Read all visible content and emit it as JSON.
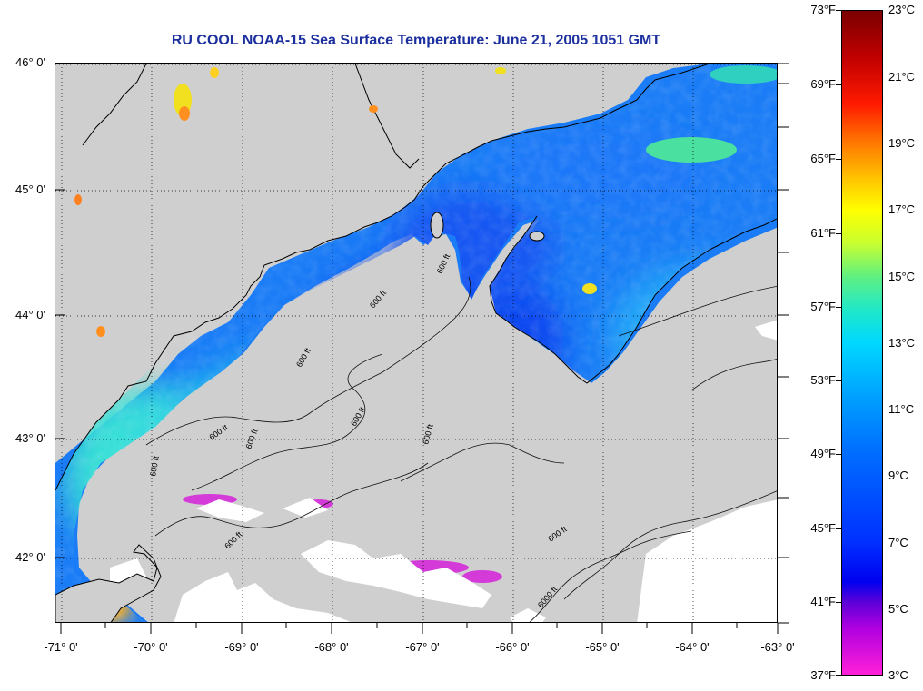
{
  "title": "RU COOL  NOAA-15  Sea Surface Temperature:  June 21, 2005 1051 GMT",
  "map": {
    "lat_ticks": [
      "46° 0'",
      "45° 0'",
      "44° 0'",
      "43° 0'",
      "42° 0'"
    ],
    "lon_ticks": [
      "-71° 0'",
      "-70° 0'",
      "-69° 0'",
      "-68° 0'",
      "-67° 0'",
      "-66° 0'",
      "-65° 0'",
      "-64° 0'",
      "-63° 0'"
    ],
    "contour_labels": [
      "600 ft",
      "600 ft",
      "600 ft",
      "600 ft",
      "600 ft",
      "600 ft",
      "600 ft",
      "600 ft",
      "600 ft",
      "600 ft",
      "6000 ft"
    ],
    "colors": {
      "land": "#cfcfcf",
      "cloud": "#ffffff",
      "coldest": "#ff00ff",
      "cold": "#0000ff",
      "cool": "#0090ff",
      "mid": "#00e0ff",
      "warm": "#ffe000",
      "hot": "#ff2000"
    }
  },
  "colorbar": {
    "fahrenheit_labels": [
      "73°F",
      "69°F",
      "65°F",
      "61°F",
      "57°F",
      "53°F",
      "49°F",
      "45°F",
      "41°F",
      "37°F"
    ],
    "celsius_labels": [
      "23°C",
      "21°C",
      "19°C",
      "17°C",
      "15°C",
      "13°C",
      "11°C",
      "9°C",
      "7°C",
      "5°C",
      "3°C"
    ]
  }
}
